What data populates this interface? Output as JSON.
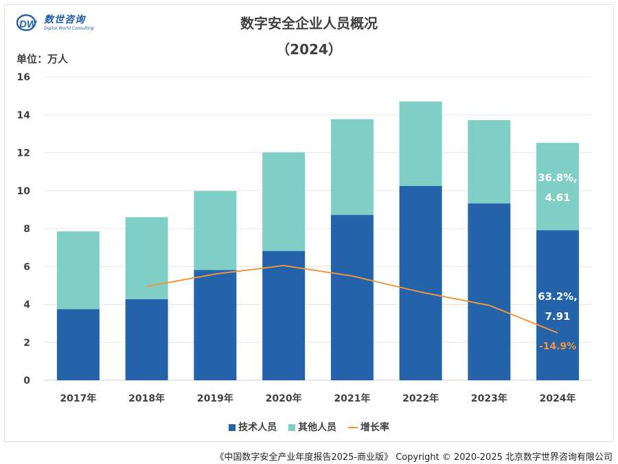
{
  "logo": {
    "name_cn": "数世咨询",
    "name_en": "Digital World Consulting",
    "mark": "DW"
  },
  "header": {
    "title": "数字安全企业人员概况",
    "subtitle": "（2024）",
    "unit": "单位：万人"
  },
  "legend": {
    "tech": "技术人员",
    "other": "其他人员",
    "growth": "增长率"
  },
  "footer": {
    "copyright": "《中国数字安全产业年度报告2025-商业版》 Copyright © 2020-2025 北京数字世界咨询有限公司"
  },
  "colors": {
    "tech": "#2463aa",
    "other": "#7fcfc6",
    "growth": "#f0953e",
    "grid": "#e6e6e6",
    "axis": "#d0d0d0"
  },
  "chart_data": {
    "type": "bar",
    "stacked": true,
    "categories": [
      "2017年",
      "2018年",
      "2019年",
      "2020年",
      "2021年",
      "2022年",
      "2023年",
      "2024年"
    ],
    "series": [
      {
        "name": "技术人员",
        "values": [
          3.75,
          4.28,
          5.82,
          6.82,
          8.72,
          10.25,
          9.33,
          7.91
        ]
      },
      {
        "name": "其他人员",
        "values": [
          4.1,
          4.32,
          4.16,
          5.2,
          5.05,
          4.45,
          4.39,
          4.61
        ]
      }
    ],
    "line_series": {
      "name": "增长率",
      "x_start_index": 1,
      "values": [
        4.95,
        5.6,
        6.05,
        5.5,
        4.65,
        3.95,
        2.5
      ]
    },
    "ylim": [
      0,
      16
    ],
    "yticks": [
      0,
      2,
      4,
      6,
      8,
      10,
      12,
      14,
      16
    ],
    "grid": true,
    "legend_position": "bottom",
    "annotations": [
      {
        "target": "其他人员",
        "category": "2024年",
        "line1": "36.8%,",
        "line2": "4.61"
      },
      {
        "target": "技术人员",
        "category": "2024年",
        "line1": "63.2%,",
        "line2": "7.91"
      },
      {
        "target": "增长率",
        "category": "2024年",
        "text": "-14.9%"
      }
    ]
  }
}
